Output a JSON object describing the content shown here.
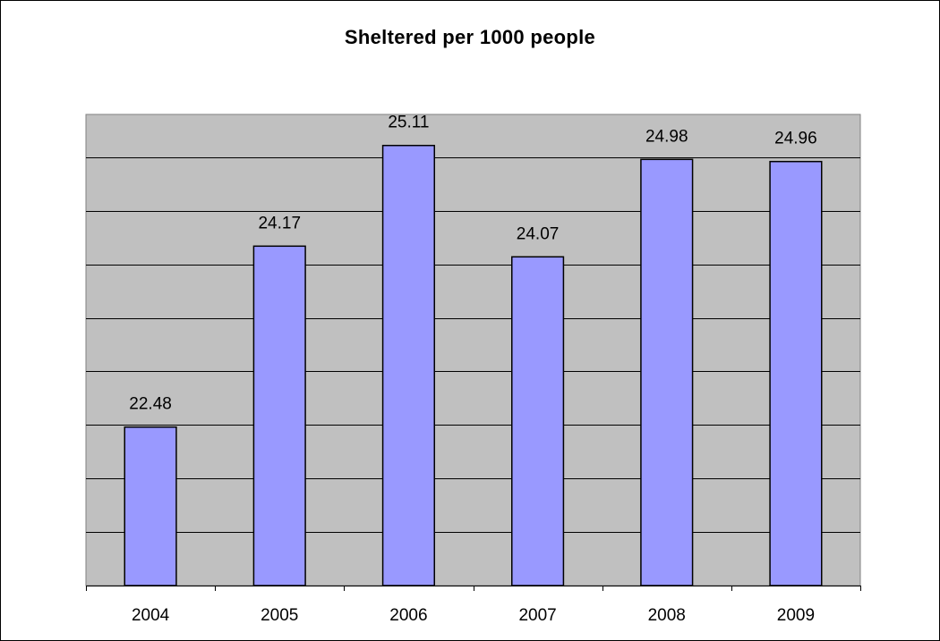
{
  "chart_data": {
    "type": "bar",
    "title": "Sheltered per 1000 people",
    "xlabel": "",
    "ylabel": "",
    "categories": [
      "2004",
      "2005",
      "2006",
      "2007",
      "2008",
      "2009"
    ],
    "values": [
      22.48,
      24.17,
      25.11,
      24.07,
      24.98,
      24.96
    ],
    "data_labels": [
      "22.48",
      "24.17",
      "25.11",
      "24.07",
      "24.98",
      "24.96"
    ],
    "ylim": [
      21,
      25.4
    ],
    "y_gridline_step": 0.5,
    "grid": true,
    "legend": "none",
    "colors": {
      "bar_fill": "#9999ff",
      "bar_stroke": "#000000",
      "plot_background": "#c0c0c0",
      "gridline": "#000000"
    }
  }
}
